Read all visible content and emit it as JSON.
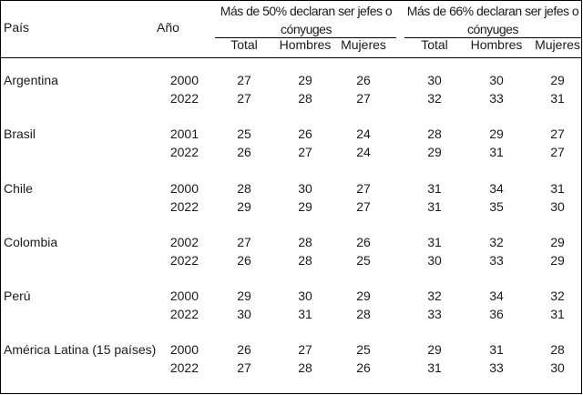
{
  "header": {
    "pais": "País",
    "anio": "Año",
    "group1": [
      "Más de 50% declaran ser jefes o",
      "cónyuges"
    ],
    "group2": [
      "Más de 66% declaran ser jefes o",
      "cónyuges"
    ],
    "sub": [
      "Total",
      "Hombres",
      "Mujeres",
      "Total",
      "Hombres",
      "Mujeres"
    ]
  },
  "rows": [
    {
      "pais": "Argentina",
      "anio": "2000",
      "vals": [
        "27",
        "29",
        "26",
        "30",
        "30",
        "29"
      ]
    },
    {
      "pais": "",
      "anio": "2022",
      "vals": [
        "27",
        "28",
        "27",
        "32",
        "33",
        "31"
      ]
    },
    {
      "pais": "Brasil",
      "anio": "2001",
      "vals": [
        "25",
        "26",
        "24",
        "28",
        "29",
        "27"
      ]
    },
    {
      "pais": "",
      "anio": "2022",
      "vals": [
        "26",
        "27",
        "24",
        "29",
        "31",
        "27"
      ]
    },
    {
      "pais": "Chile",
      "anio": "2000",
      "vals": [
        "28",
        "30",
        "27",
        "31",
        "34",
        "31"
      ]
    },
    {
      "pais": "",
      "anio": "2022",
      "vals": [
        "29",
        "29",
        "27",
        "31",
        "35",
        "30"
      ]
    },
    {
      "pais": "Colombia",
      "anio": "2002",
      "vals": [
        "27",
        "28",
        "26",
        "31",
        "32",
        "29"
      ]
    },
    {
      "pais": "",
      "anio": "2022",
      "vals": [
        "26",
        "28",
        "25",
        "30",
        "33",
        "29"
      ]
    },
    {
      "pais": "Perú",
      "anio": "2000",
      "vals": [
        "29",
        "30",
        "29",
        "32",
        "34",
        "32"
      ]
    },
    {
      "pais": "",
      "anio": "2022",
      "vals": [
        "30",
        "31",
        "28",
        "33",
        "36",
        "31"
      ]
    },
    {
      "pais": "América Latina (15 países)",
      "anio": "2000",
      "vals": [
        "26",
        "27",
        "25",
        "29",
        "31",
        "28"
      ]
    },
    {
      "pais": "",
      "anio": "2022",
      "vals": [
        "27",
        "28",
        "26",
        "31",
        "33",
        "30"
      ]
    }
  ]
}
